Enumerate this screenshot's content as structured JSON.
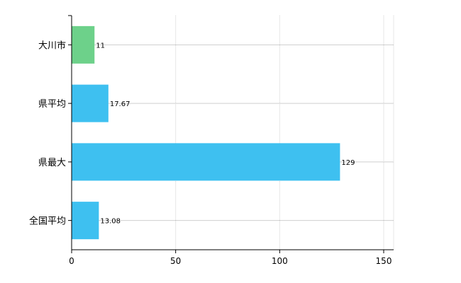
{
  "chart_data": {
    "type": "bar",
    "orientation": "horizontal",
    "categories": [
      "大川市",
      "県平均",
      "県最大",
      "全国平均"
    ],
    "values": [
      11,
      17.67,
      129,
      13.08
    ],
    "data_labels": [
      "11",
      "17.67",
      "129",
      "13.08"
    ],
    "colors": [
      "#6dd18a",
      "#3ec0f0",
      "#3ec0f0",
      "#3ec0f0"
    ],
    "xlim": [
      0,
      150
    ],
    "xticks": [
      0,
      50,
      100,
      150
    ],
    "grid": true,
    "legend": "none",
    "title": "",
    "xlabel": "",
    "ylabel": ""
  }
}
